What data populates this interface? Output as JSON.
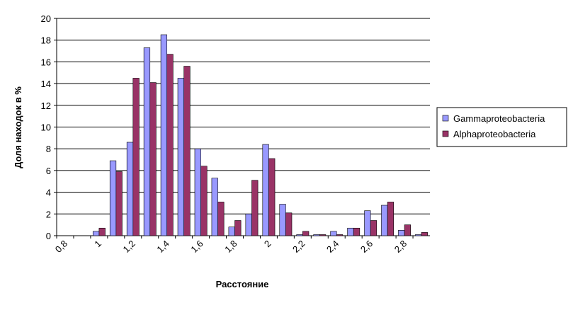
{
  "chart_data": {
    "type": "bar",
    "y_label": "Доля находок в %",
    "x_label": "Расстояние",
    "categories": [
      "0,8",
      null,
      "1",
      null,
      "1,2",
      null,
      "1,4",
      null,
      "1,6",
      null,
      "1,8",
      null,
      "2",
      null,
      "2,2",
      null,
      "2,4",
      null,
      "2,6",
      null,
      "2,8",
      null
    ],
    "series": [
      {
        "name": "Gammaproteobacteria",
        "color": "#9999ff",
        "values": [
          0,
          0,
          0.4,
          6.9,
          8.6,
          17.3,
          18.5,
          14.5,
          8.0,
          5.3,
          0.8,
          2.0,
          8.4,
          2.9,
          0.1,
          0.1,
          0.4,
          0.7,
          2.3,
          2.8,
          0.5,
          0.1
        ]
      },
      {
        "name": "Alphaproteobacteria",
        "color": "#993366",
        "values": [
          0,
          0,
          0.7,
          5.9,
          14.5,
          14.1,
          16.7,
          15.6,
          6.4,
          3.1,
          1.4,
          5.1,
          7.1,
          2.1,
          0.4,
          0.1,
          0.1,
          0.7,
          1.4,
          3.1,
          1.0,
          0.3
        ]
      }
    ],
    "ylim": [
      0,
      20
    ],
    "yticks": [
      0,
      2,
      4,
      6,
      8,
      10,
      12,
      14,
      16,
      18,
      20
    ],
    "grid": true,
    "legend": "right"
  }
}
